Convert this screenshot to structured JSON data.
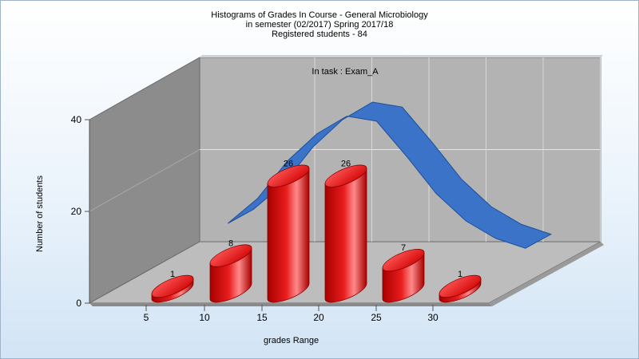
{
  "titles": {
    "line1": "Histograms of Grades  In Course - General Microbiology",
    "line2": "in semester  (02/2017) Spring 2017/18",
    "line3": "Registered students - 84"
  },
  "chart_data": {
    "type": "bar",
    "annotation": "In task : Exam_A",
    "xlabel": "grades Range",
    "ylabel": "Number of students",
    "x_ticks": [
      "5",
      "10",
      "15",
      "20",
      "25",
      "30"
    ],
    "y_ticks": [
      "0",
      "20",
      "40"
    ],
    "ylim": [
      0,
      40
    ],
    "categories": [
      7.5,
      12.5,
      17.5,
      22.5,
      27.5,
      32.5
    ],
    "values": [
      1,
      8,
      26,
      26,
      7,
      1
    ],
    "value_labels": [
      "1",
      "8",
      "26",
      "26",
      "7",
      "1"
    ],
    "curve": {
      "type": "ribbon",
      "x": [
        12.5,
        15,
        17.5,
        20,
        22.5,
        25,
        27.5,
        30,
        32.5,
        35,
        37.5
      ],
      "y": [
        8,
        13,
        20.5,
        26,
        29.5,
        28.5,
        21.5,
        14,
        8.5,
        5,
        3
      ]
    },
    "grid": true,
    "colors": {
      "bar": "#e81c1c",
      "bar_dark": "#a80000",
      "bar_light": "#ff8a8a",
      "curve": "#3a73c8",
      "curve_dark": "#1f4f9a",
      "wall_back": "#b3b3b3",
      "wall_side": "#8c8c8c",
      "floor": "#bdbdbd"
    }
  }
}
